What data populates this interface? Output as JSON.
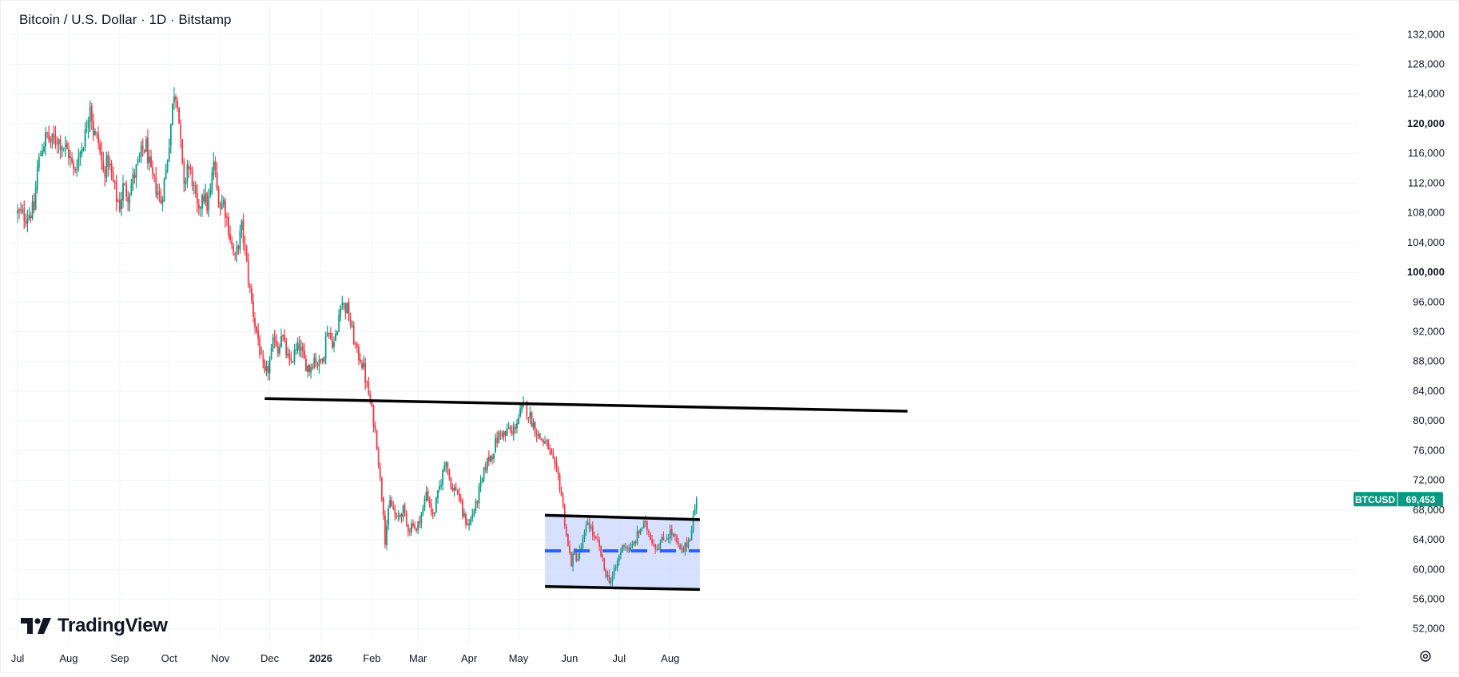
{
  "header": {
    "title": "Bitcoin / U.S. Dollar · 1D · Bitstamp"
  },
  "branding": {
    "logo_text": "TradingView",
    "logo_icon": "tradingview-logo-icon"
  },
  "price_tag": {
    "symbol": "BTCUSD",
    "value": "69,453",
    "color": "#089981"
  },
  "settings": {
    "icon": "gear-icon"
  },
  "colors": {
    "up": "#089981",
    "down": "#f23645",
    "range_fill": "#c9d6ff",
    "dashed_mid": "#2962ff",
    "trendline": "#000000"
  },
  "chart_data": {
    "type": "candlestick",
    "title": "Bitcoin / U.S. Dollar · 1D · Bitstamp",
    "x_tick_labels": [
      {
        "label": "Jul",
        "bold": false
      },
      {
        "label": "Aug",
        "bold": false
      },
      {
        "label": "Sep",
        "bold": false
      },
      {
        "label": "Oct",
        "bold": false
      },
      {
        "label": "Nov",
        "bold": false
      },
      {
        "label": "Dec",
        "bold": false
      },
      {
        "label": "2026",
        "bold": true
      },
      {
        "label": "Feb",
        "bold": false
      },
      {
        "label": "Mar",
        "bold": false
      },
      {
        "label": "Apr",
        "bold": false
      },
      {
        "label": "May",
        "bold": false
      },
      {
        "label": "Jun",
        "bold": false
      },
      {
        "label": "Jul",
        "bold": false
      },
      {
        "label": "Aug",
        "bold": false
      }
    ],
    "y_tick_labels": [
      {
        "label": "132,000",
        "value": 132000,
        "bold": false
      },
      {
        "label": "128,000",
        "value": 128000,
        "bold": false
      },
      {
        "label": "124,000",
        "value": 124000,
        "bold": false
      },
      {
        "label": "120,000",
        "value": 120000,
        "bold": true
      },
      {
        "label": "116,000",
        "value": 116000,
        "bold": false
      },
      {
        "label": "112,000",
        "value": 112000,
        "bold": false
      },
      {
        "label": "108,000",
        "value": 108000,
        "bold": false
      },
      {
        "label": "104,000",
        "value": 104000,
        "bold": false
      },
      {
        "label": "100,000",
        "value": 100000,
        "bold": true
      },
      {
        "label": "96,000",
        "value": 96000,
        "bold": false
      },
      {
        "label": "92,000",
        "value": 92000,
        "bold": false
      },
      {
        "label": "88,000",
        "value": 88000,
        "bold": false
      },
      {
        "label": "84,000",
        "value": 84000,
        "bold": false
      },
      {
        "label": "80,000",
        "value": 80000,
        "bold": false
      },
      {
        "label": "76,000",
        "value": 76000,
        "bold": false
      },
      {
        "label": "72,000",
        "value": 72000,
        "bold": false
      },
      {
        "label": "68,000",
        "value": 68000,
        "bold": false
      },
      {
        "label": "64,000",
        "value": 64000,
        "bold": false
      },
      {
        "label": "60,000",
        "value": 60000,
        "bold": false
      },
      {
        "label": "56,000",
        "value": 56000,
        "bold": false
      },
      {
        "label": "52,000",
        "value": 52000,
        "bold": false
      }
    ],
    "y_range": [
      51000,
      133000
    ],
    "y_scale": "linear",
    "grid": true,
    "month_days": [
      {
        "label": "Jul",
        "day": 0
      },
      {
        "label": "Aug",
        "day": 31
      },
      {
        "label": "Sep",
        "day": 62
      },
      {
        "label": "Oct",
        "day": 92
      },
      {
        "label": "Nov",
        "day": 123
      },
      {
        "label": "Dec",
        "day": 153
      },
      {
        "label": "2026",
        "day": 184
      },
      {
        "label": "Feb",
        "day": 215
      },
      {
        "label": "Mar",
        "day": 243
      },
      {
        "label": "Apr",
        "day": 274
      },
      {
        "label": "May",
        "day": 304
      },
      {
        "label": "Jun",
        "day": 335
      },
      {
        "label": "Jul",
        "day": 365
      },
      {
        "label": "Aug",
        "day": 396
      }
    ],
    "close_path": [
      [
        0,
        108000
      ],
      [
        5,
        107500
      ],
      [
        10,
        108500
      ],
      [
        12,
        114000
      ],
      [
        15,
        117000
      ],
      [
        18,
        118500
      ],
      [
        20,
        117500
      ],
      [
        24,
        118000
      ],
      [
        28,
        117000
      ],
      [
        31,
        116000
      ],
      [
        34,
        113500
      ],
      [
        37,
        115500
      ],
      [
        41,
        118500
      ],
      [
        44,
        123000
      ],
      [
        46,
        119000
      ],
      [
        49,
        117500
      ],
      [
        52,
        113500
      ],
      [
        55,
        115000
      ],
      [
        57,
        113000
      ],
      [
        60,
        110000
      ],
      [
        62,
        109000
      ],
      [
        64,
        111500
      ],
      [
        67,
        110500
      ],
      [
        70,
        112500
      ],
      [
        73,
        114500
      ],
      [
        76,
        116500
      ],
      [
        78,
        117000
      ],
      [
        81,
        113000
      ],
      [
        84,
        111500
      ],
      [
        87,
        109500
      ],
      [
        90,
        113500
      ],
      [
        93,
        120000
      ],
      [
        95,
        124500
      ],
      [
        97,
        123500
      ],
      [
        99,
        117000
      ],
      [
        101,
        111000
      ],
      [
        103,
        114500
      ],
      [
        106,
        112500
      ],
      [
        108,
        109500
      ],
      [
        110,
        107500
      ],
      [
        112,
        111000
      ],
      [
        115,
        109000
      ],
      [
        117,
        110500
      ],
      [
        119,
        115000
      ],
      [
        121,
        111000
      ],
      [
        123,
        109000
      ],
      [
        125,
        109500
      ],
      [
        128,
        106000
      ],
      [
        130,
        103500
      ],
      [
        132,
        101500
      ],
      [
        134,
        104000
      ],
      [
        136,
        106000
      ],
      [
        138,
        103000
      ],
      [
        140,
        99000
      ],
      [
        142,
        96000
      ],
      [
        144,
        93000
      ],
      [
        146,
        91000
      ],
      [
        148,
        88000
      ],
      [
        150,
        86000
      ],
      [
        152,
        87000
      ],
      [
        154,
        89000
      ],
      [
        156,
        91500
      ],
      [
        158,
        89500
      ],
      [
        160,
        92000
      ],
      [
        162,
        90000
      ],
      [
        165,
        87500
      ],
      [
        168,
        89000
      ],
      [
        171,
        90000
      ],
      [
        174,
        88000
      ],
      [
        177,
        87000
      ],
      [
        180,
        88500
      ],
      [
        183,
        87500
      ],
      [
        186,
        89500
      ],
      [
        188,
        92500
      ],
      [
        190,
        91000
      ],
      [
        192,
        90500
      ],
      [
        194,
        92000
      ],
      [
        196,
        96500
      ],
      [
        198,
        95500
      ],
      [
        200,
        95000
      ],
      [
        202,
        93000
      ],
      [
        204,
        91000
      ],
      [
        206,
        89000
      ],
      [
        208,
        88500
      ],
      [
        210,
        87000
      ],
      [
        212,
        84500
      ],
      [
        214,
        82500
      ],
      [
        216,
        80000
      ],
      [
        218,
        77000
      ],
      [
        220,
        72000
      ],
      [
        222,
        68000
      ],
      [
        223,
        64000
      ],
      [
        224,
        66000
      ],
      [
        226,
        69000
      ],
      [
        228,
        68000
      ],
      [
        230,
        66500
      ],
      [
        232,
        67500
      ],
      [
        234,
        68000
      ],
      [
        236,
        66000
      ],
      [
        238,
        65500
      ],
      [
        240,
        66500
      ],
      [
        242,
        65000
      ],
      [
        244,
        67000
      ],
      [
        246,
        68000
      ],
      [
        248,
        70500
      ],
      [
        250,
        69000
      ],
      [
        252,
        67000
      ],
      [
        254,
        69000
      ],
      [
        256,
        71000
      ],
      [
        258,
        73000
      ],
      [
        260,
        75000
      ],
      [
        262,
        72500
      ],
      [
        264,
        70500
      ],
      [
        266,
        71000
      ],
      [
        268,
        69500
      ],
      [
        270,
        67500
      ],
      [
        272,
        66500
      ],
      [
        274,
        66000
      ],
      [
        276,
        67500
      ],
      [
        278,
        68500
      ],
      [
        280,
        70500
      ],
      [
        282,
        72000
      ],
      [
        284,
        74000
      ],
      [
        286,
        75000
      ],
      [
        288,
        75500
      ],
      [
        290,
        77000
      ],
      [
        292,
        78000
      ],
      [
        294,
        78500
      ],
      [
        296,
        78000
      ],
      [
        298,
        79000
      ],
      [
        300,
        78000
      ],
      [
        302,
        79500
      ],
      [
        304,
        80500
      ],
      [
        306,
        81500
      ],
      [
        308,
        82000
      ],
      [
        310,
        81000
      ],
      [
        312,
        80000
      ],
      [
        314,
        79000
      ],
      [
        316,
        78000
      ],
      [
        318,
        77500
      ],
      [
        320,
        77000
      ],
      [
        322,
        76500
      ],
      [
        324,
        75000
      ],
      [
        326,
        73500
      ],
      [
        328,
        72500
      ],
      [
        330,
        70000
      ],
      [
        332,
        66500
      ],
      [
        334,
        63000
      ],
      [
        336,
        61000
      ],
      [
        338,
        62000
      ],
      [
        340,
        61500
      ],
      [
        342,
        63000
      ],
      [
        344,
        64500
      ],
      [
        346,
        66500
      ],
      [
        348,
        65500
      ],
      [
        350,
        64000
      ],
      [
        352,
        63500
      ],
      [
        354,
        62000
      ],
      [
        356,
        60000
      ],
      [
        358,
        59000
      ],
      [
        360,
        58500
      ],
      [
        362,
        59500
      ],
      [
        364,
        61000
      ],
      [
        366,
        62500
      ],
      [
        368,
        63500
      ],
      [
        370,
        63000
      ],
      [
        372,
        62500
      ],
      [
        374,
        63500
      ],
      [
        376,
        64500
      ],
      [
        378,
        65500
      ],
      [
        380,
        66000
      ],
      [
        382,
        65500
      ],
      [
        384,
        64500
      ],
      [
        386,
        63500
      ],
      [
        388,
        63000
      ],
      [
        390,
        63500
      ],
      [
        392,
        64000
      ],
      [
        394,
        64500
      ],
      [
        396,
        65000
      ],
      [
        398,
        64500
      ],
      [
        400,
        63500
      ],
      [
        402,
        62500
      ],
      [
        404,
        62500
      ],
      [
        406,
        63500
      ],
      [
        408,
        64500
      ],
      [
        410,
        67000
      ],
      [
        412,
        69453
      ]
    ],
    "trendline": {
      "start": {
        "day": 150,
        "value": 83000
      },
      "end": {
        "day": 540,
        "value": 81300
      }
    },
    "range_box": {
      "start_day": 320,
      "end_day": 414,
      "top_start": 67300,
      "top_end": 66700,
      "bottom_start": 57700,
      "bottom_end": 57300,
      "midline": 62500
    },
    "last_price": 69453
  }
}
